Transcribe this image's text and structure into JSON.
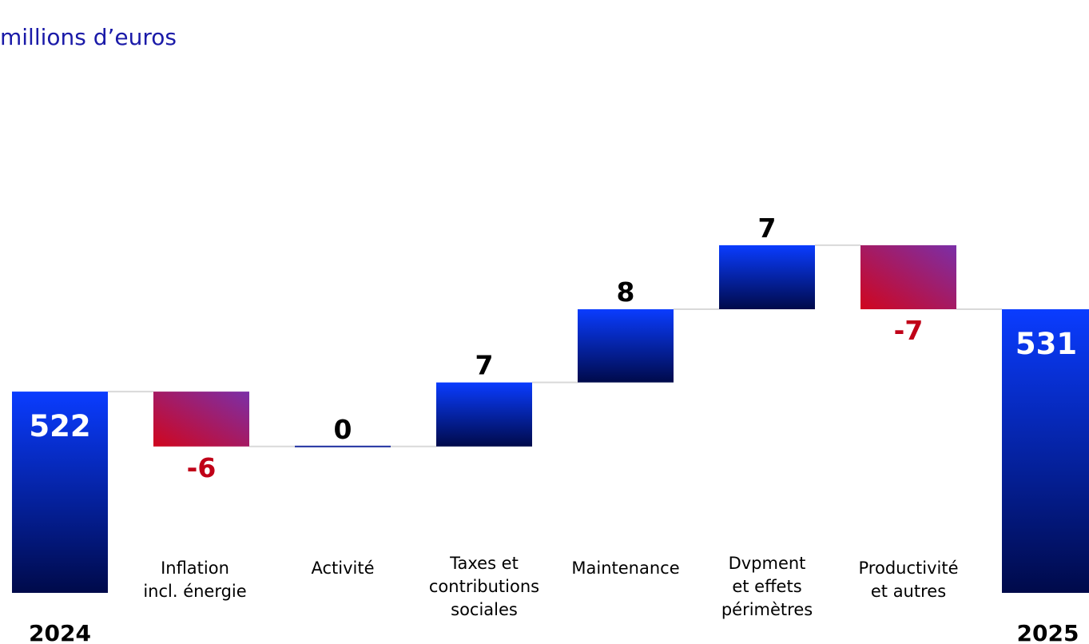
{
  "chart_data": {
    "type": "bar",
    "subtype": "waterfall",
    "unit_label": "millions d’euros",
    "start": {
      "label": "2024",
      "value": 522
    },
    "end": {
      "label": "2025",
      "value": 531
    },
    "steps": [
      {
        "label_lines": [
          "Inflation",
          "incl. énergie"
        ],
        "value": -6,
        "value_label": "-6"
      },
      {
        "label_lines": [
          "Activité"
        ],
        "value": 0,
        "value_label": "0"
      },
      {
        "label_lines": [
          "Taxes et",
          "contributions",
          "sociales"
        ],
        "value": 7,
        "value_label": "7"
      },
      {
        "label_lines": [
          "Maintenance"
        ],
        "value": 8,
        "value_label": "8"
      },
      {
        "label_lines": [
          "Dvpment",
          "et effets",
          "périmètres"
        ],
        "value": 7,
        "value_label": "7"
      },
      {
        "label_lines": [
          "Productivité",
          "et autres"
        ],
        "value": -7,
        "value_label": "-7"
      }
    ],
    "totals_value_labels": [
      "522",
      "531"
    ],
    "colors": {
      "increase_top": "#0a3cff",
      "increase_bottom": "#000a4a",
      "decrease_top_right": "#7b2fa8",
      "decrease_bottom_left": "#d0061e",
      "negative_label": "#c00018",
      "positive_label": "#000000",
      "total_label": "#ffffff",
      "connector": "#d9d9d9"
    }
  }
}
